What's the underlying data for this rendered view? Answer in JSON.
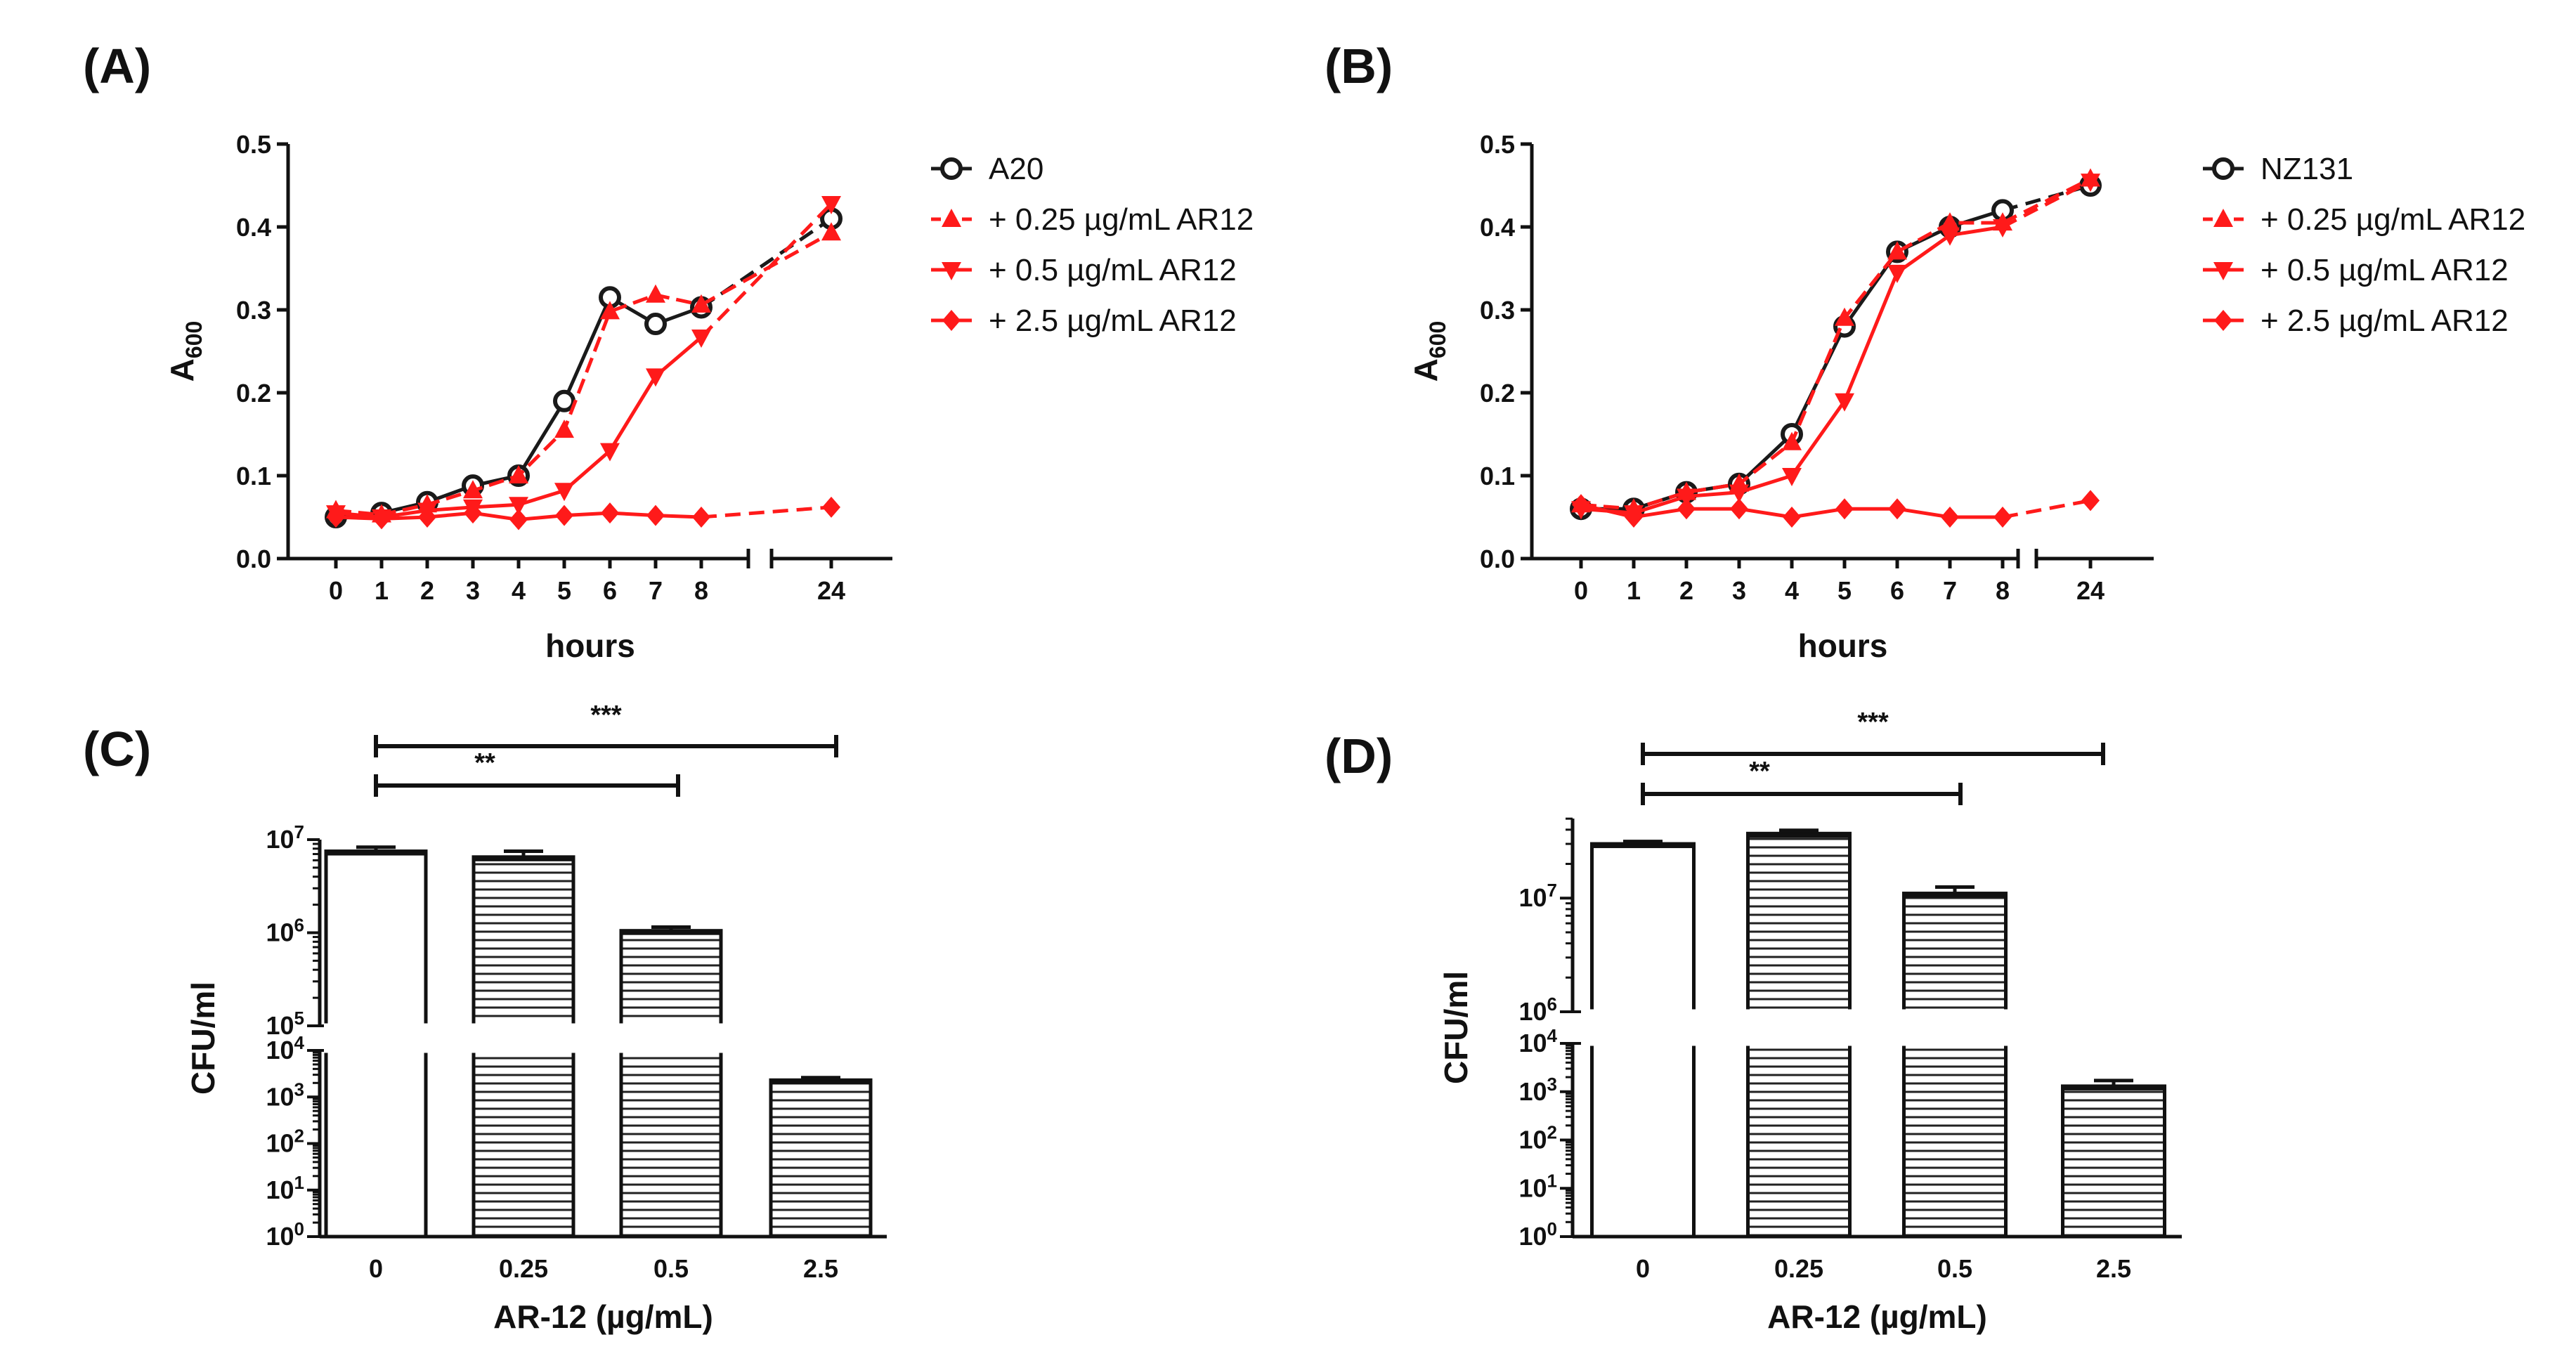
{
  "figure": {
    "colors": {
      "control": "#1a1a1a",
      "treated": "#ff1a1a"
    }
  },
  "chart_data": [
    {
      "type": "line",
      "panel": "(A)",
      "xlabel": "hours",
      "ylabel_main": "A",
      "ylabel_sub": "600",
      "ylim": [
        0,
        0.5
      ],
      "yticks": [
        "0.0",
        "0.1",
        "0.2",
        "0.3",
        "0.4",
        "0.5"
      ],
      "xticks": [
        "0",
        "1",
        "2",
        "3",
        "4",
        "5",
        "6",
        "7",
        "8",
        "24"
      ],
      "x": [
        0,
        1,
        2,
        3,
        4,
        5,
        6,
        7,
        8,
        24
      ],
      "axis_break": "between 8 and 24 hours",
      "legend_position": "top-right",
      "series": [
        {
          "name": "A20",
          "marker": "circle",
          "values": [
            0.05,
            0.055,
            0.068,
            0.088,
            0.1,
            0.19,
            0.315,
            0.283,
            0.303,
            0.41
          ]
        },
        {
          "name": "+ 0.25 µg/mL AR12",
          "marker": "triangle-up",
          "values": [
            0.058,
            0.053,
            0.065,
            0.082,
            0.1,
            0.155,
            0.298,
            0.318,
            0.306,
            0.393
          ]
        },
        {
          "name": "+ 0.5 µg/mL AR12",
          "marker": "triangle-down",
          "values": [
            0.055,
            0.05,
            0.058,
            0.062,
            0.065,
            0.082,
            0.13,
            0.22,
            0.267,
            0.428
          ]
        },
        {
          "name": "+ 2.5 µg/mL AR12",
          "marker": "diamond",
          "values": [
            0.05,
            0.048,
            0.05,
            0.055,
            0.047,
            0.052,
            0.055,
            0.052,
            0.05,
            0.062
          ]
        }
      ]
    },
    {
      "type": "line",
      "panel": "(B)",
      "xlabel": "hours",
      "ylabel_main": "A",
      "ylabel_sub": "600",
      "ylim": [
        0,
        0.5
      ],
      "yticks": [
        "0.0",
        "0.1",
        "0.2",
        "0.3",
        "0.4",
        "0.5"
      ],
      "xticks": [
        "0",
        "1",
        "2",
        "3",
        "4",
        "5",
        "6",
        "7",
        "8",
        "24"
      ],
      "x": [
        0,
        1,
        2,
        3,
        4,
        5,
        6,
        7,
        8,
        24
      ],
      "axis_break": "between 8 and 24 hours",
      "legend_position": "top-right",
      "series": [
        {
          "name": "NZ131",
          "marker": "circle",
          "values": [
            0.06,
            0.06,
            0.08,
            0.09,
            0.15,
            0.28,
            0.37,
            0.4,
            0.42,
            0.45
          ]
        },
        {
          "name": "+ 0.25 µg/mL AR12",
          "marker": "triangle-up",
          "values": [
            0.065,
            0.06,
            0.08,
            0.09,
            0.14,
            0.29,
            0.37,
            0.405,
            0.405,
            0.458
          ]
        },
        {
          "name": "+ 0.5 µg/mL AR12",
          "marker": "triangle-down",
          "values": [
            0.06,
            0.055,
            0.075,
            0.08,
            0.1,
            0.19,
            0.345,
            0.39,
            0.4,
            0.455
          ]
        },
        {
          "name": "+ 2.5 µg/mL AR12",
          "marker": "diamond",
          "values": [
            0.065,
            0.05,
            0.06,
            0.06,
            0.05,
            0.06,
            0.06,
            0.05,
            0.05,
            0.07
          ]
        }
      ]
    },
    {
      "type": "bar",
      "panel": "(C)",
      "yscale": "log",
      "axis_break": "between 10^4 and 10^5",
      "xlabel": "AR-12 (µg/mL)",
      "ylabel": "CFU/ml",
      "categories": [
        "0",
        "0.25",
        "0.5",
        "2.5"
      ],
      "values": [
        7500000,
        6500000,
        1050000,
        2300
      ],
      "errors": [
        800000,
        1000000,
        100000,
        300
      ],
      "fill": [
        "open",
        "hatched",
        "hatched",
        "hatched"
      ],
      "yticks_upper": [
        {
          "base": "10",
          "exp": "5"
        },
        {
          "base": "10",
          "exp": "6"
        },
        {
          "base": "10",
          "exp": "7"
        }
      ],
      "yticks_lower": [
        {
          "base": "10",
          "exp": "0"
        },
        {
          "base": "10",
          "exp": "1"
        },
        {
          "base": "10",
          "exp": "2"
        },
        {
          "base": "10",
          "exp": "3"
        },
        {
          "base": "10",
          "exp": "4"
        }
      ],
      "significance": [
        {
          "from": "0",
          "to": "2.5",
          "label": "***"
        },
        {
          "from": "0",
          "to": "0.5",
          "label": "**"
        }
      ]
    },
    {
      "type": "bar",
      "panel": "(D)",
      "yscale": "log",
      "axis_break": "between 10^4 and 10^6",
      "xlabel": "AR-12 (µg/mL)",
      "ylabel": "CFU/ml",
      "categories": [
        "0",
        "0.25",
        "0.5",
        "2.5"
      ],
      "values": [
        30000000,
        37000000,
        11000000,
        1300
      ],
      "errors": [
        1500000,
        2500000,
        1500000,
        400
      ],
      "fill": [
        "open",
        "hatched",
        "hatched",
        "hatched"
      ],
      "yticks_upper": [
        {
          "base": "10",
          "exp": "6"
        },
        {
          "base": "10",
          "exp": "7"
        }
      ],
      "yticks_lower": [
        {
          "base": "10",
          "exp": "0"
        },
        {
          "base": "10",
          "exp": "1"
        },
        {
          "base": "10",
          "exp": "2"
        },
        {
          "base": "10",
          "exp": "3"
        },
        {
          "base": "10",
          "exp": "4"
        }
      ],
      "significance": [
        {
          "from": "0",
          "to": "2.5",
          "label": "***"
        },
        {
          "from": "0",
          "to": "0.5",
          "label": "**"
        }
      ]
    }
  ]
}
